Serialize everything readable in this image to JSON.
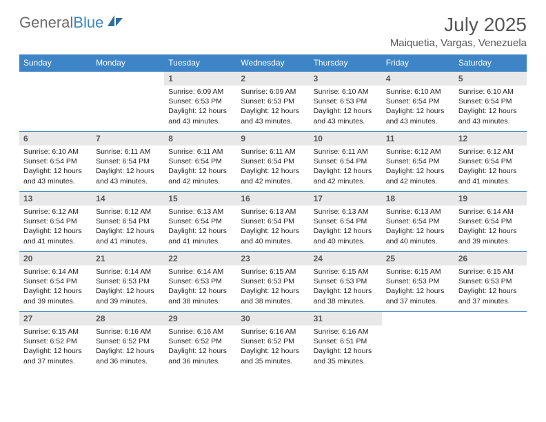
{
  "logo": {
    "text1": "General",
    "text2": "Blue"
  },
  "title": "July 2025",
  "location": "Maiquetia, Vargas, Venezuela",
  "colors": {
    "header_bg": "#3d85c6",
    "daynum_bg": "#e8e8e8",
    "border": "#3d85c6"
  },
  "weekdays": [
    "Sunday",
    "Monday",
    "Tuesday",
    "Wednesday",
    "Thursday",
    "Friday",
    "Saturday"
  ],
  "weeks": [
    [
      null,
      null,
      {
        "n": "1",
        "sr": "6:09 AM",
        "ss": "6:53 PM",
        "dl": "12 hours and 43 minutes."
      },
      {
        "n": "2",
        "sr": "6:09 AM",
        "ss": "6:53 PM",
        "dl": "12 hours and 43 minutes."
      },
      {
        "n": "3",
        "sr": "6:10 AM",
        "ss": "6:53 PM",
        "dl": "12 hours and 43 minutes."
      },
      {
        "n": "4",
        "sr": "6:10 AM",
        "ss": "6:54 PM",
        "dl": "12 hours and 43 minutes."
      },
      {
        "n": "5",
        "sr": "6:10 AM",
        "ss": "6:54 PM",
        "dl": "12 hours and 43 minutes."
      }
    ],
    [
      {
        "n": "6",
        "sr": "6:10 AM",
        "ss": "6:54 PM",
        "dl": "12 hours and 43 minutes."
      },
      {
        "n": "7",
        "sr": "6:11 AM",
        "ss": "6:54 PM",
        "dl": "12 hours and 43 minutes."
      },
      {
        "n": "8",
        "sr": "6:11 AM",
        "ss": "6:54 PM",
        "dl": "12 hours and 42 minutes."
      },
      {
        "n": "9",
        "sr": "6:11 AM",
        "ss": "6:54 PM",
        "dl": "12 hours and 42 minutes."
      },
      {
        "n": "10",
        "sr": "6:11 AM",
        "ss": "6:54 PM",
        "dl": "12 hours and 42 minutes."
      },
      {
        "n": "11",
        "sr": "6:12 AM",
        "ss": "6:54 PM",
        "dl": "12 hours and 42 minutes."
      },
      {
        "n": "12",
        "sr": "6:12 AM",
        "ss": "6:54 PM",
        "dl": "12 hours and 41 minutes."
      }
    ],
    [
      {
        "n": "13",
        "sr": "6:12 AM",
        "ss": "6:54 PM",
        "dl": "12 hours and 41 minutes."
      },
      {
        "n": "14",
        "sr": "6:12 AM",
        "ss": "6:54 PM",
        "dl": "12 hours and 41 minutes."
      },
      {
        "n": "15",
        "sr": "6:13 AM",
        "ss": "6:54 PM",
        "dl": "12 hours and 41 minutes."
      },
      {
        "n": "16",
        "sr": "6:13 AM",
        "ss": "6:54 PM",
        "dl": "12 hours and 40 minutes."
      },
      {
        "n": "17",
        "sr": "6:13 AM",
        "ss": "6:54 PM",
        "dl": "12 hours and 40 minutes."
      },
      {
        "n": "18",
        "sr": "6:13 AM",
        "ss": "6:54 PM",
        "dl": "12 hours and 40 minutes."
      },
      {
        "n": "19",
        "sr": "6:14 AM",
        "ss": "6:54 PM",
        "dl": "12 hours and 39 minutes."
      }
    ],
    [
      {
        "n": "20",
        "sr": "6:14 AM",
        "ss": "6:54 PM",
        "dl": "12 hours and 39 minutes."
      },
      {
        "n": "21",
        "sr": "6:14 AM",
        "ss": "6:53 PM",
        "dl": "12 hours and 39 minutes."
      },
      {
        "n": "22",
        "sr": "6:14 AM",
        "ss": "6:53 PM",
        "dl": "12 hours and 38 minutes."
      },
      {
        "n": "23",
        "sr": "6:15 AM",
        "ss": "6:53 PM",
        "dl": "12 hours and 38 minutes."
      },
      {
        "n": "24",
        "sr": "6:15 AM",
        "ss": "6:53 PM",
        "dl": "12 hours and 38 minutes."
      },
      {
        "n": "25",
        "sr": "6:15 AM",
        "ss": "6:53 PM",
        "dl": "12 hours and 37 minutes."
      },
      {
        "n": "26",
        "sr": "6:15 AM",
        "ss": "6:53 PM",
        "dl": "12 hours and 37 minutes."
      }
    ],
    [
      {
        "n": "27",
        "sr": "6:15 AM",
        "ss": "6:52 PM",
        "dl": "12 hours and 37 minutes."
      },
      {
        "n": "28",
        "sr": "6:16 AM",
        "ss": "6:52 PM",
        "dl": "12 hours and 36 minutes."
      },
      {
        "n": "29",
        "sr": "6:16 AM",
        "ss": "6:52 PM",
        "dl": "12 hours and 36 minutes."
      },
      {
        "n": "30",
        "sr": "6:16 AM",
        "ss": "6:52 PM",
        "dl": "12 hours and 35 minutes."
      },
      {
        "n": "31",
        "sr": "6:16 AM",
        "ss": "6:51 PM",
        "dl": "12 hours and 35 minutes."
      },
      null,
      null
    ]
  ],
  "labels": {
    "sunrise": "Sunrise:",
    "sunset": "Sunset:",
    "daylight": "Daylight:"
  }
}
